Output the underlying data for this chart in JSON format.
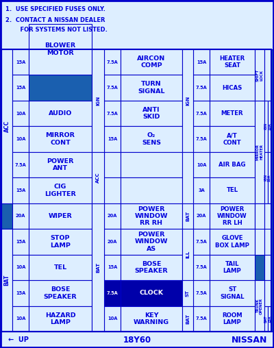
{
  "bg_color": "#1a5faf",
  "cell_bg": "#ddeeff",
  "cell_dark": "#0000aa",
  "text_color": "#0000dd",
  "border_color": "#0000cc",
  "title1": "1.  USE SPECIFIED FUSES ONLY.",
  "title2": "2.  CONTACT A NISSAN DEALER",
  "title3": "    FOR SYSTEMS NOT LISTED.",
  "footer_left": "←  UP",
  "footer_center": "18Y60",
  "footer_right": "NISSAN",
  "rows": [
    {
      "la": "15A",
      "ll": "BLOWER\nMOTOR",
      "ll_span": 2,
      "ma": "7.5A",
      "ml": "AIRCON\nCOMP",
      "ra": "15A",
      "rl": "HEATER\nSEAT",
      "dark": false
    },
    {
      "la": "15A",
      "ll": "",
      "ll_span": 0,
      "ma": "7.5A",
      "ml": "TURN\nSIGNAL",
      "ra": "7.5A",
      "rl": "HICAS",
      "dark": false
    },
    {
      "la": "10A",
      "ll": "AUDIO",
      "ll_span": 1,
      "ma": "7.5A",
      "ml": "ANTI\nSKID",
      "ra": "7.5A",
      "rl": "METER",
      "dark": false
    },
    {
      "la": "10A",
      "ll": "MIRROR\nCONT",
      "ll_span": 1,
      "ma": "15A",
      "ml": "O₂\nSENS",
      "ra": "7.5A",
      "rl": "A/T\nCONT",
      "dark": false
    },
    {
      "la": "7.5A",
      "ll": "POWER\nANT",
      "ll_span": 1,
      "ma": "",
      "ml": "",
      "ra": "10A",
      "rl": "AIR BAG",
      "dark": false
    },
    {
      "la": "15A",
      "ll": "CIG\nLIGHTER",
      "ll_span": 1,
      "ma": "",
      "ml": "",
      "ra": "3A",
      "rl": "TEL",
      "dark": false
    },
    {
      "la": "20A",
      "ll": "WIPER",
      "ll_span": 1,
      "ma": "20A",
      "ml": "POWER\nWINDOW\nRR RH",
      "ra": "20A",
      "rl": "POWER\nWINDOW\nRR LH",
      "dark": false
    },
    {
      "la": "15A",
      "ll": "STOP\nLAMP",
      "ll_span": 1,
      "ma": "20A",
      "ml": "POWER\nWINDOW\nAS",
      "ra": "7.5A",
      "rl": "GLOVE\nBOX LAMP",
      "dark": false
    },
    {
      "la": "10A",
      "ll": "TEL",
      "ll_span": 1,
      "ma": "15A",
      "ml": "BOSE\nSPEAKER",
      "ra": "7.5A",
      "rl": "TAIL\nLAMP",
      "dark": false
    },
    {
      "la": "15A",
      "ll": "BOSE\nSPEAKER",
      "ll_span": 1,
      "ma": "7.5A",
      "ml": "CLOCK",
      "ra": "7.5A",
      "rl": "ST\nSIGNAL",
      "dark": true
    },
    {
      "la": "10A",
      "ll": "HAZARD\nLAMP",
      "ll_span": 1,
      "ma": "10A",
      "ml": "KEY\nWARNING",
      "ra": "7.5A",
      "rl": "ROOM\nLAMP",
      "dark": false
    }
  ],
  "left_side_labels": [
    {
      "label": "ACC",
      "rows": [
        0,
        5
      ]
    },
    {
      "label": "BAT",
      "rows": [
        6,
        10
      ]
    }
  ],
  "ign_col1": {
    "label": "IGN",
    "rows": [
      0,
      3
    ]
  },
  "acc_col1": {
    "label": "ACC",
    "rows": [
      4,
      5
    ]
  },
  "bat_col1": {
    "label": "BAT",
    "rows": [
      6,
      10
    ]
  },
  "ign_col2": {
    "label": "IGN",
    "rows": [
      0,
      3
    ]
  },
  "bat_col2": {
    "label": "BAT",
    "rows": [
      6,
      6
    ]
  },
  "ill_col": {
    "label": "ILL",
    "rows": [
      7,
      8
    ]
  },
  "st_col": {
    "label": "ST",
    "rows": [
      9,
      9
    ]
  },
  "bat_col3": {
    "label": "BAT",
    "rows": [
      10,
      10
    ]
  },
  "shift_lock": {
    "rows": [
      0,
      1
    ]
  },
  "mirror_heater_ign": {
    "rows": [
      2,
      3
    ]
  },
  "mirror_heater": {
    "rows": [
      2,
      5
    ]
  },
  "mirror_heater_ign10a": {
    "rows": [
      2,
      3
    ]
  },
  "mirror_heater_ign20a": {
    "rows": [
      4,
      5
    ]
  },
  "trunk_opener": {
    "rows": [
      8,
      10
    ]
  },
  "bat_15a": {
    "rows": [
      10,
      10
    ]
  }
}
